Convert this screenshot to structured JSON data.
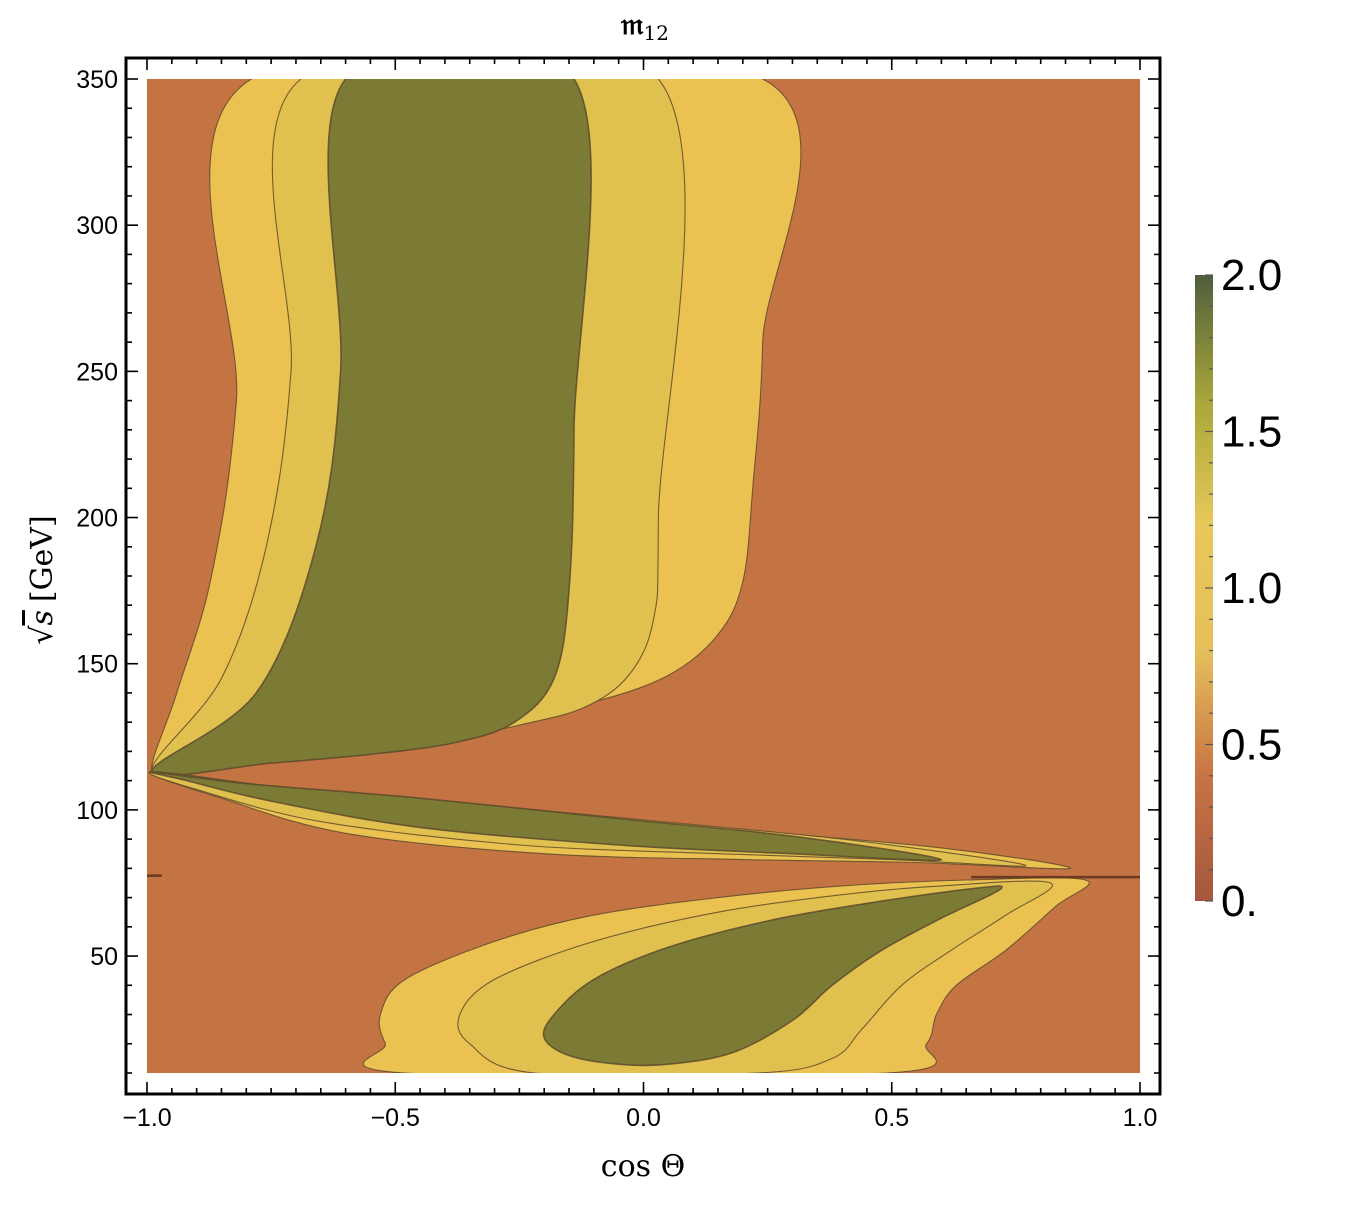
{
  "chart_data": {
    "type": "heatmap",
    "title": "𝔪",
    "title_sub": "12",
    "xlabel": "cos Θ",
    "ylabel_root": "√",
    "ylabel_var": "s",
    "ylabel_unit": "[GeV]",
    "xlim": [
      -1.0,
      1.0
    ],
    "ylim": [
      10,
      350
    ],
    "x_ticks": [
      {
        "value": -1.0,
        "label": "−1.0"
      },
      {
        "value": -0.5,
        "label": "−0.5"
      },
      {
        "value": 0.0,
        "label": "0.0"
      },
      {
        "value": 0.5,
        "label": "0.5"
      },
      {
        "value": 1.0,
        "label": "1.0"
      }
    ],
    "y_ticks": [
      {
        "value": 50,
        "label": "50"
      },
      {
        "value": 100,
        "label": "100"
      },
      {
        "value": 150,
        "label": "150"
      },
      {
        "value": 200,
        "label": "200"
      },
      {
        "value": 250,
        "label": "250"
      },
      {
        "value": 300,
        "label": "300"
      },
      {
        "value": 350,
        "label": "350"
      }
    ],
    "colorbar": {
      "range": [
        0,
        2
      ],
      "ticks": [
        {
          "value": 0,
          "label": "0."
        },
        {
          "value": 0.5,
          "label": "0.5"
        },
        {
          "value": 1.0,
          "label": "1.0"
        },
        {
          "value": 1.5,
          "label": "1.5"
        },
        {
          "value": 2.0,
          "label": "2.0"
        }
      ],
      "stops": [
        "#a4573e",
        "#c87444",
        "#e5bf5b",
        "#e8c85a",
        "#a8a63a",
        "#4e5e3c"
      ]
    },
    "level_colors": {
      "low": "#c47442",
      "mid": "#ebc252",
      "high": "#e0c04e",
      "top": "#7c7b36"
    },
    "regions": [
      {
        "name": "upper-band",
        "level": "mid",
        "points": [
          [
            -0.79,
            350
          ],
          [
            -0.82,
            240
          ],
          [
            -0.87,
            180
          ],
          [
            -0.94,
            140
          ],
          [
            -0.99,
            113
          ],
          [
            -0.9,
            119
          ],
          [
            -0.7,
            123
          ],
          [
            -0.5,
            127
          ],
          [
            -0.3,
            131
          ],
          [
            -0.1,
            137
          ],
          [
            0.05,
            146
          ],
          [
            0.15,
            160
          ],
          [
            0.2,
            178
          ],
          [
            0.22,
            210
          ],
          [
            0.24,
            260
          ],
          [
            0.24,
            350
          ]
        ]
      },
      {
        "name": "upper-band",
        "level": "high",
        "points": [
          [
            -0.69,
            350
          ],
          [
            -0.71,
            250
          ],
          [
            -0.76,
            190
          ],
          [
            -0.85,
            145
          ],
          [
            -0.99,
            113
          ],
          [
            -0.8,
            117
          ],
          [
            -0.6,
            120
          ],
          [
            -0.4,
            124
          ],
          [
            -0.25,
            129
          ],
          [
            -0.12,
            135
          ],
          [
            -0.03,
            146
          ],
          [
            0.02,
            165
          ],
          [
            0.03,
            200
          ],
          [
            0.03,
            350
          ]
        ]
      },
      {
        "name": "upper-band",
        "level": "top",
        "points": [
          [
            -0.6,
            350
          ],
          [
            -0.61,
            250
          ],
          [
            -0.66,
            190
          ],
          [
            -0.78,
            140
          ],
          [
            -0.99,
            113
          ],
          [
            -0.75,
            116
          ],
          [
            -0.55,
            119
          ],
          [
            -0.38,
            123
          ],
          [
            -0.26,
            130
          ],
          [
            -0.18,
            145
          ],
          [
            -0.15,
            175
          ],
          [
            -0.14,
            230
          ],
          [
            -0.14,
            350
          ]
        ]
      },
      {
        "name": "middle-band",
        "level": "mid",
        "points": [
          [
            -0.99,
            113
          ],
          [
            -0.7,
            107
          ],
          [
            -0.3,
            100
          ],
          [
            0.2,
            93
          ],
          [
            0.6,
            87
          ],
          [
            0.86,
            80
          ],
          [
            0.55,
            82
          ],
          [
            0.2,
            83
          ],
          [
            -0.2,
            85
          ],
          [
            -0.6,
            92
          ],
          [
            -0.85,
            104
          ]
        ]
      },
      {
        "name": "middle-band",
        "level": "high",
        "points": [
          [
            -0.99,
            113
          ],
          [
            -0.75,
            108
          ],
          [
            -0.35,
            102
          ],
          [
            0.1,
            95
          ],
          [
            0.45,
            89
          ],
          [
            0.77,
            81
          ],
          [
            0.5,
            83
          ],
          [
            0.15,
            85
          ],
          [
            -0.25,
            88
          ],
          [
            -0.65,
            96
          ],
          [
            -0.9,
            107
          ]
        ]
      },
      {
        "name": "middle-band",
        "level": "top",
        "points": [
          [
            -0.99,
            113
          ],
          [
            -0.8,
            109
          ],
          [
            -0.45,
            104
          ],
          [
            -0.05,
            97
          ],
          [
            0.3,
            91
          ],
          [
            0.6,
            83
          ],
          [
            0.3,
            85
          ],
          [
            -0.05,
            88
          ],
          [
            -0.45,
            94
          ],
          [
            -0.75,
            103
          ],
          [
            -0.92,
            110
          ]
        ]
      },
      {
        "name": "lower-band",
        "level": "mid",
        "points": [
          [
            -0.48,
            10
          ],
          [
            -0.52,
            20
          ],
          [
            -0.53,
            30
          ],
          [
            -0.48,
            42
          ],
          [
            -0.3,
            55
          ],
          [
            -0.1,
            64
          ],
          [
            0.15,
            70
          ],
          [
            0.4,
            74
          ],
          [
            0.65,
            76
          ],
          [
            0.89,
            76
          ],
          [
            0.83,
            67
          ],
          [
            0.73,
            52
          ],
          [
            0.63,
            40
          ],
          [
            0.59,
            30
          ],
          [
            0.57,
            20
          ],
          [
            0.49,
            10
          ]
        ]
      },
      {
        "name": "lower-band",
        "level": "high",
        "points": [
          [
            -0.22,
            10
          ],
          [
            -0.35,
            20
          ],
          [
            -0.37,
            30
          ],
          [
            -0.3,
            42
          ],
          [
            -0.1,
            55
          ],
          [
            0.15,
            65
          ],
          [
            0.4,
            71
          ],
          [
            0.6,
            74
          ],
          [
            0.82,
            75
          ],
          [
            0.73,
            64
          ],
          [
            0.62,
            52
          ],
          [
            0.52,
            40
          ],
          [
            0.44,
            25
          ],
          [
            0.38,
            15
          ],
          [
            0.23,
            10
          ]
        ]
      },
      {
        "name": "lower-band",
        "level": "top",
        "points": [
          [
            -0.2,
            22
          ],
          [
            -0.18,
            30
          ],
          [
            -0.1,
            42
          ],
          [
            0.05,
            53
          ],
          [
            0.25,
            62
          ],
          [
            0.45,
            68
          ],
          [
            0.66,
            73
          ],
          [
            0.72,
            73
          ],
          [
            0.6,
            63
          ],
          [
            0.48,
            52
          ],
          [
            0.38,
            40
          ],
          [
            0.3,
            28
          ],
          [
            0.18,
            17
          ],
          [
            0.05,
            13
          ],
          [
            -0.05,
            13
          ],
          [
            -0.15,
            16
          ]
        ]
      }
    ]
  }
}
